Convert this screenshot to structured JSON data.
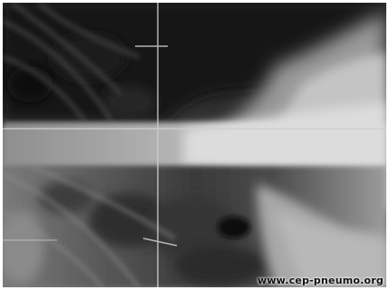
{
  "image": {
    "subject": "chest radiograph (x-ray)",
    "watermark": "www.cep-pneumo.org"
  },
  "colors": {
    "lung_dark": "#1a1a1a",
    "mid_gray": "#6f6f6f",
    "dense_white": "#d8d8d8",
    "border": "#ffffff"
  }
}
